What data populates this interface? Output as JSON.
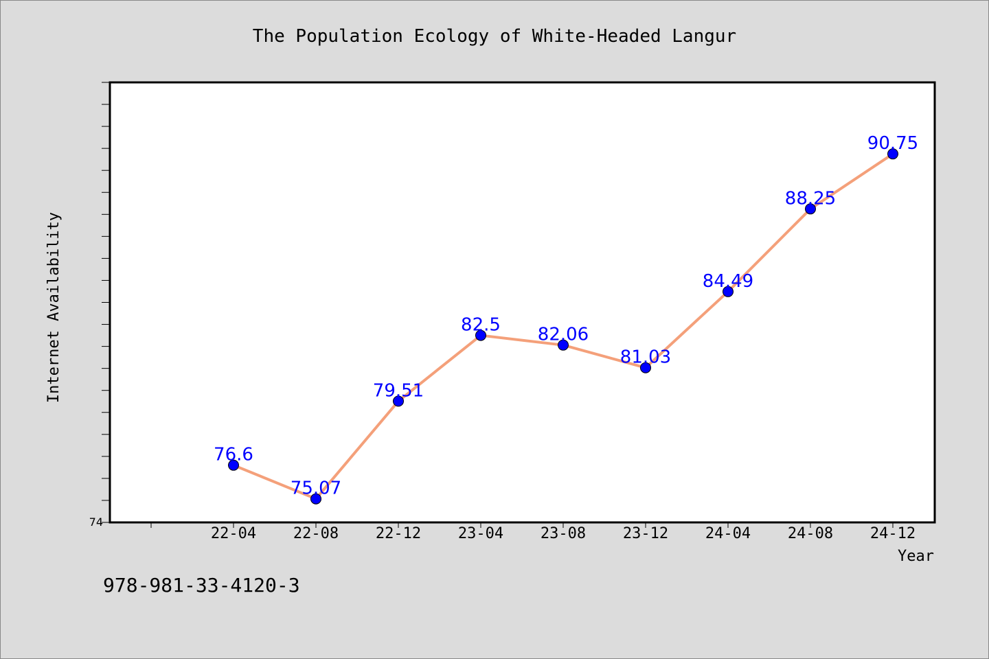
{
  "chart_data": {
    "type": "line",
    "title": "The Population Ecology of White-Headed Langur",
    "xlabel": "Year",
    "ylabel": "Internet Availability",
    "categories": [
      "22-04",
      "22-08",
      "22-12",
      "23-04",
      "23-08",
      "23-12",
      "24-04",
      "24-08",
      "24-12"
    ],
    "series": [
      {
        "values": [
          76.6,
          75.07,
          79.51,
          82.5,
          82.06,
          81.03,
          84.49,
          88.25,
          90.75
        ]
      }
    ],
    "data_labels": [
      "76.6",
      "75.07",
      "79.51",
      "82.5",
      "82.06",
      "81.03",
      "84.49",
      "88.25",
      "90.75"
    ],
    "ylim": [
      74,
      94
    ],
    "y_tick_label": "74",
    "grid": false,
    "line_color": "#f4a07a",
    "marker_color": "#0000ff",
    "label_color": "#0000ff"
  },
  "footer": {
    "isbn": "978-981-33-4120-3"
  }
}
